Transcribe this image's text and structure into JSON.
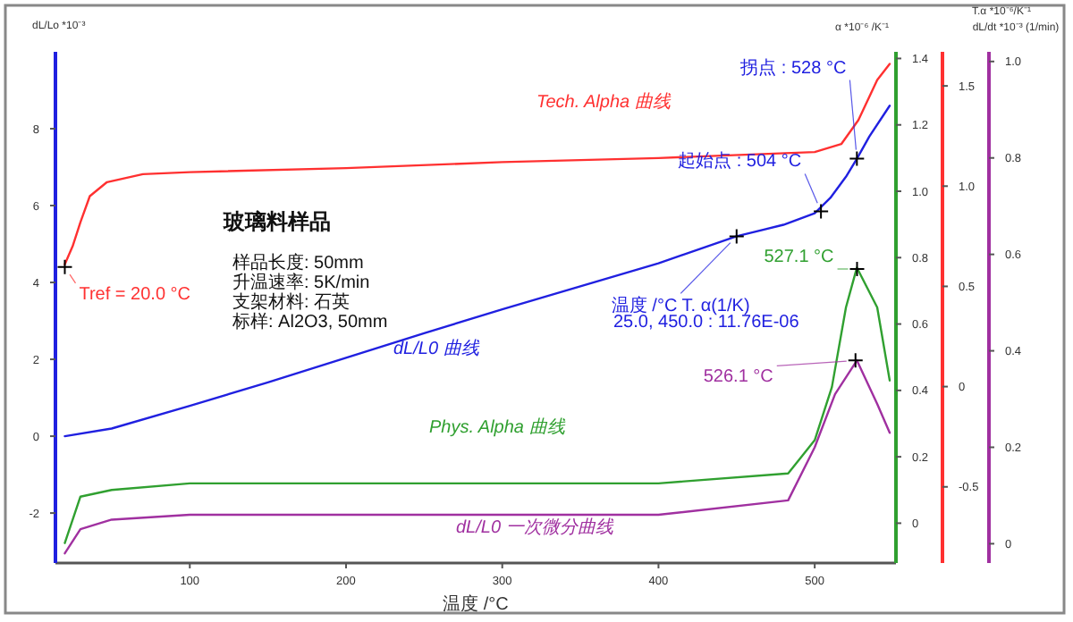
{
  "chart_data": [
    {
      "type": "line",
      "xlabel": "温度 /°C",
      "ylabel": "dL/Lo *10⁻³",
      "y2label": "α *10⁻⁶ /K⁻¹",
      "y3label": "T.α *10⁻⁶/K⁻¹",
      "xlim": [
        14,
        552
      ],
      "xticks": [
        100,
        200,
        300,
        400,
        500
      ],
      "ylim": [
        -3.3,
        10
      ],
      "yticks": [
        -2,
        0,
        2,
        4,
        6,
        8
      ],
      "y2lim": [
        -0.12,
        1.42
      ],
      "y2ticks": [
        0,
        0.2,
        0.4,
        0.6,
        0.8,
        {
          "value": 1,
          "label": "1.0"
        },
        1.2,
        1.4
      ],
      "y3lim": [
        -0.88,
        1.67
      ],
      "y3ticks": [
        -0.5,
        0,
        0.5,
        {
          "value": 1,
          "label": "1.0"
        },
        1.5
      ],
      "legend": false,
      "grid": false,
      "marker": "none",
      "line_style": "solid",
      "series": [
        {
          "name": "Tech. Alpha 曲线",
          "color": "#ff3030",
          "axis": "y3",
          "x": [
            20,
            25,
            30,
            36,
            47,
            70,
            100,
            200,
            300,
            400,
            500,
            517,
            528,
            540,
            548
          ],
          "values": [
            0.61,
            0.7,
            0.82,
            0.95,
            1.02,
            1.06,
            1.07,
            1.09,
            1.12,
            1.14,
            1.17,
            1.21,
            1.33,
            1.53,
            1.61
          ]
        },
        {
          "name": "dL/L0 曲线",
          "color": "#2020e0",
          "x": [
            20,
            50,
            100,
            150,
            200,
            250,
            300,
            350,
            400,
            450,
            480,
            500,
            510,
            520,
            527,
            535,
            548
          ],
          "values": [
            0,
            0.2,
            0.79,
            1.4,
            2.04,
            2.68,
            3.3,
            3.9,
            4.5,
            5.2,
            5.5,
            5.8,
            6.2,
            6.75,
            7.22,
            7.8,
            8.6
          ]
        },
        {
          "name": "Phys. Alpha 曲线",
          "color": "#30a030",
          "axis": "y2",
          "x": [
            20,
            30,
            50,
            100,
            200,
            300,
            400,
            483,
            500,
            511,
            520,
            527,
            540,
            548
          ],
          "values": [
            -0.06,
            0.08,
            0.1,
            0.12,
            0.12,
            0.12,
            0.12,
            0.15,
            0.25,
            0.41,
            0.65,
            0.77,
            0.65,
            0.43
          ]
        }
      ],
      "annotations": [
        {
          "text": "Tref = 20.0 °C",
          "x": 20,
          "y": 4.4
        },
        {
          "text": "拐点 : 528 °C",
          "x": 527,
          "y": 7.22
        },
        {
          "text": "起始点 : 504 °C",
          "x": 504,
          "y": 5.85
        },
        {
          "text": "温度 /°C     T. α(1/K)",
          "x": 450,
          "y": 5.2
        },
        "25.0, 450.0 : 11.76E-06",
        {
          "text": "527.1 °C",
          "x": 527.1,
          "y": 4.35
        },
        "玻璃料样品",
        "样品长度:    50mm",
        "升温速率:    5K/min",
        "支架材料:  石英",
        "标样:    Al2O3, 50mm"
      ]
    },
    {
      "type": "line",
      "ylabel": "dL/dt *10⁻³ (1/min)",
      "xlim": [
        14,
        552
      ],
      "ylim": [
        -0.04,
        1.02
      ],
      "yticks": [
        0,
        0.2,
        0.4,
        0.6,
        0.8,
        {
          "value": 1,
          "label": "1.0"
        }
      ],
      "tick_labels": "y",
      "legend": false,
      "grid": false,
      "marker": "none",
      "line_style": "solid",
      "series": [
        {
          "name": "dL/L0 一次微分曲线",
          "color": "#a030a0",
          "x": [
            20,
            30,
            50,
            100,
            200,
            300,
            400,
            483,
            500,
            513,
            527,
            540,
            548
          ],
          "values": [
            -0.02,
            0.03,
            0.05,
            0.06,
            0.06,
            0.06,
            0.06,
            0.09,
            0.2,
            0.31,
            0.38,
            0.29,
            0.23
          ]
        }
      ],
      "annotations": [
        {
          "text": "526.1 °C",
          "x": 526.1,
          "y": 0.38
        }
      ]
    }
  ]
}
